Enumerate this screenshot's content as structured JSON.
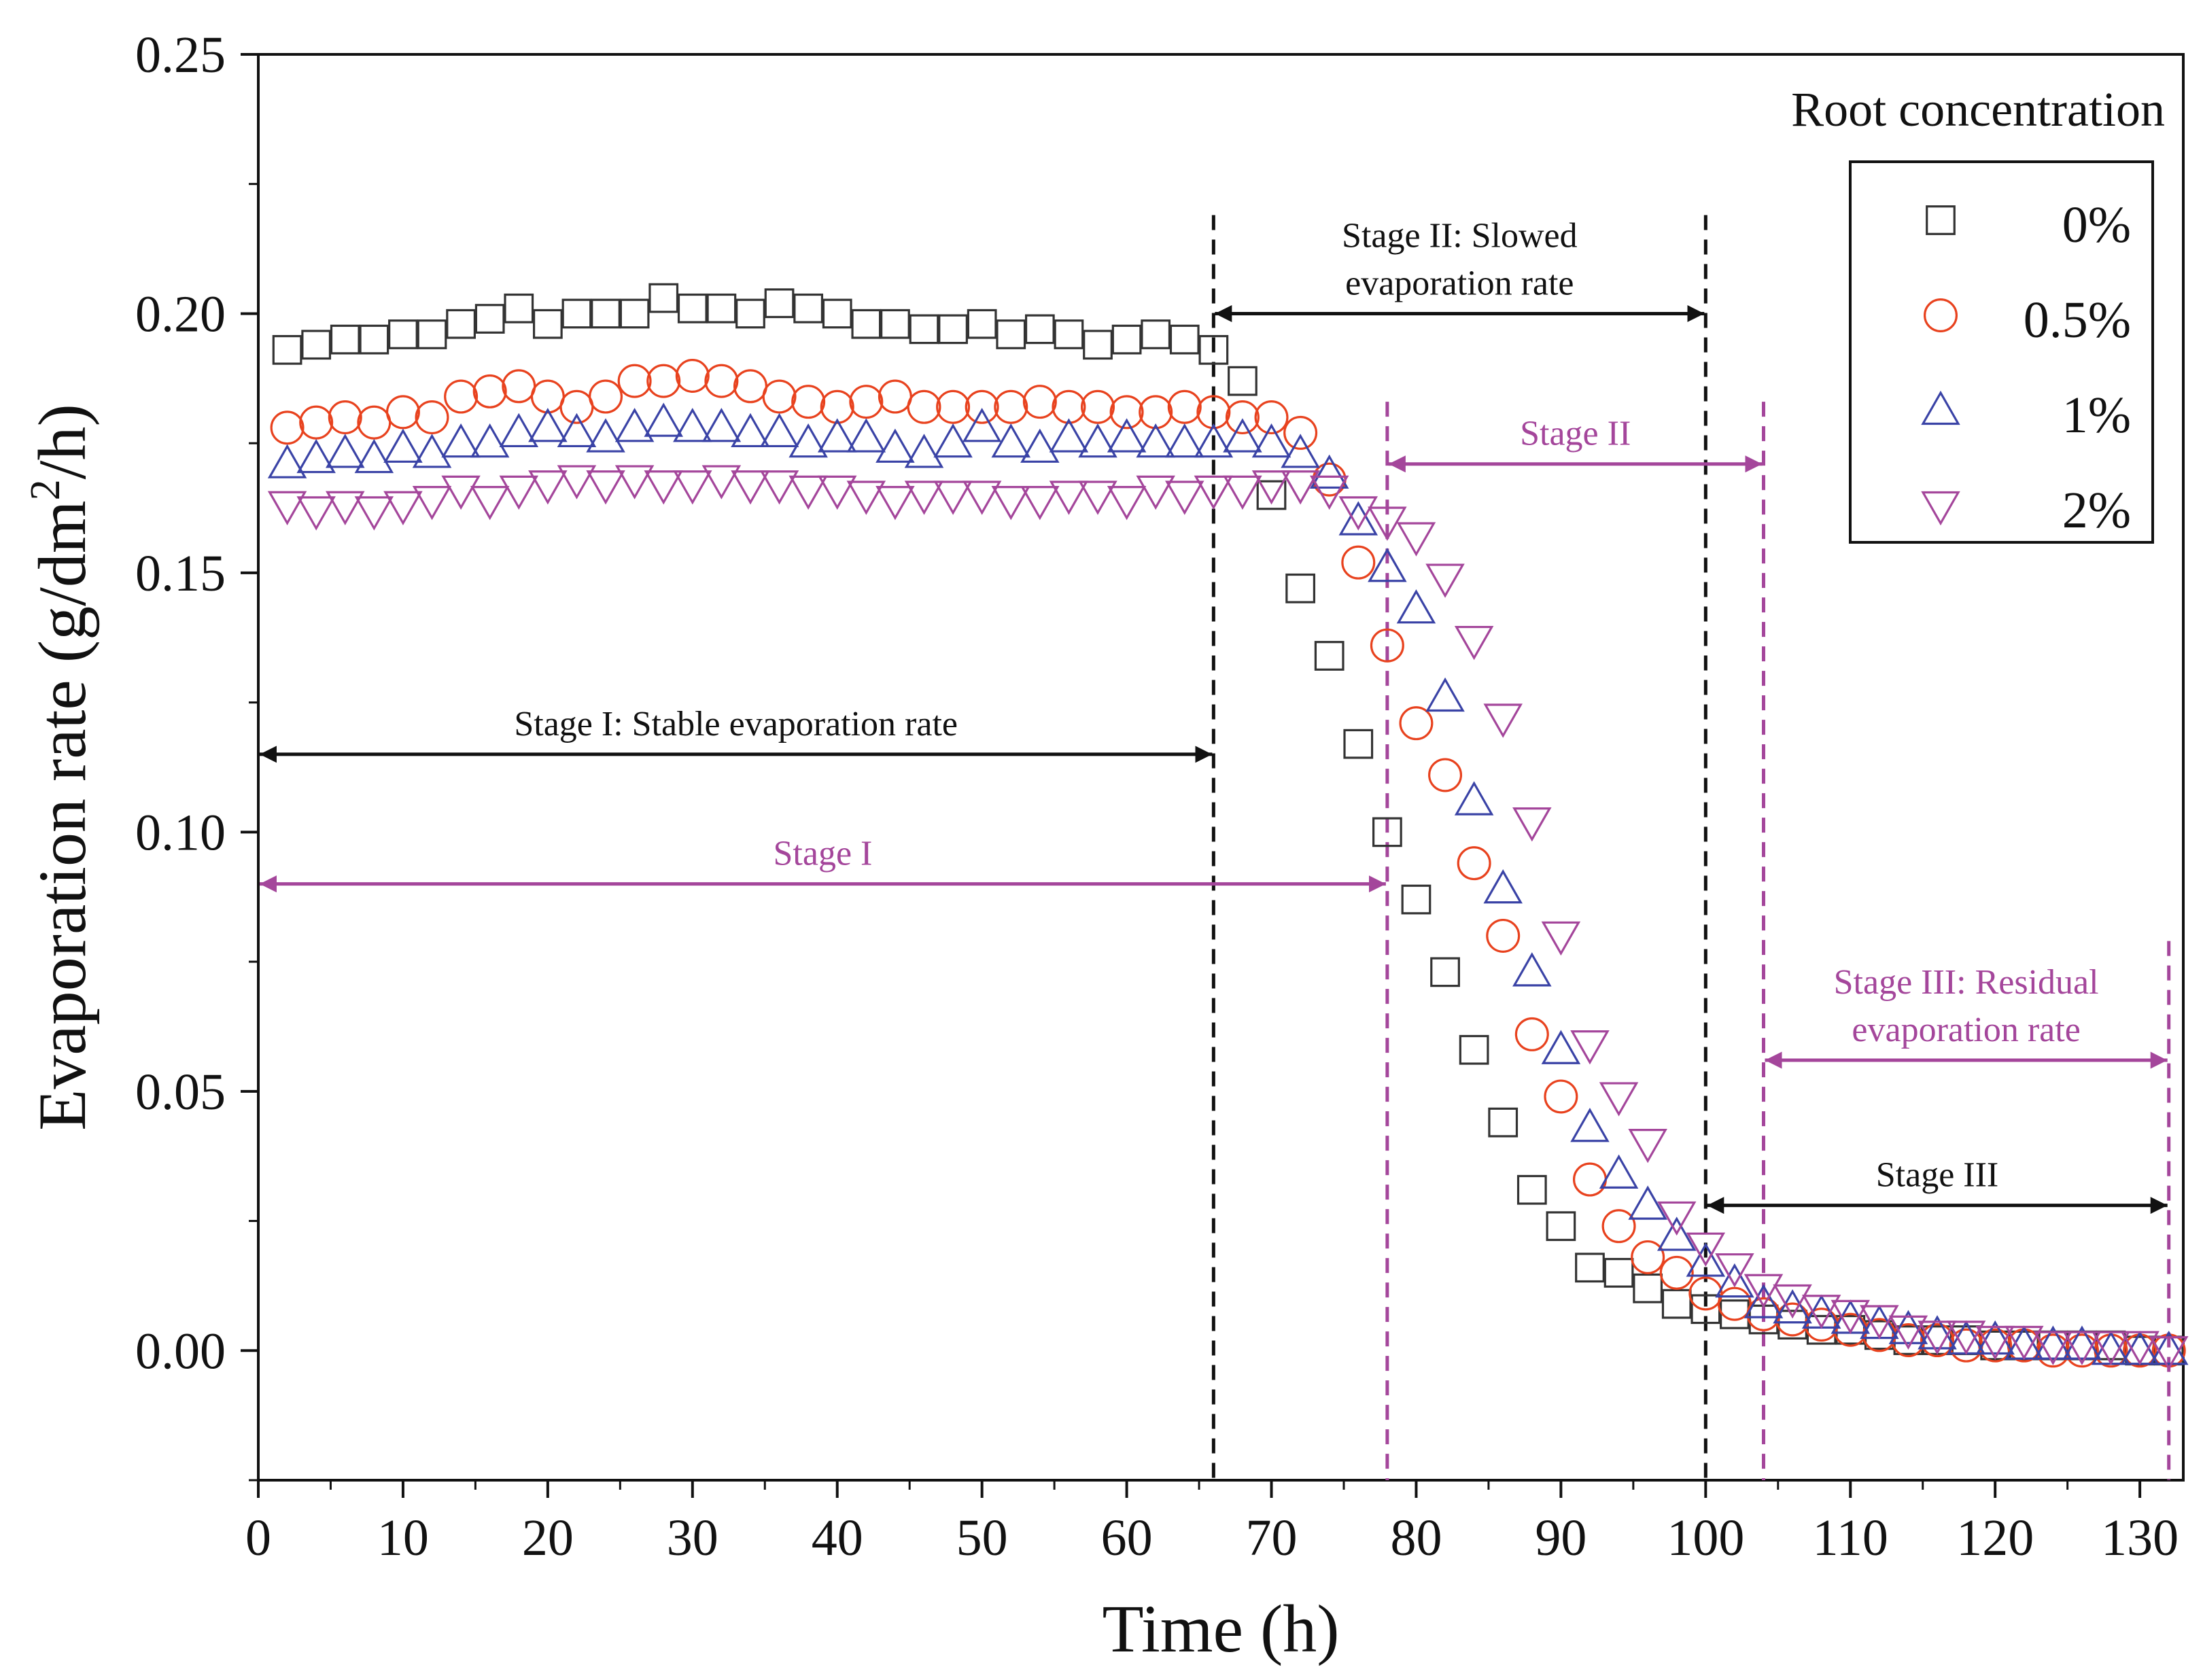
{
  "chart_data": {
    "type": "scatter",
    "title": "",
    "xlabel": "Time (h)",
    "ylabel": "Evaporation rate (g/dm²/h)",
    "ylabel_parts": [
      "Evaporation rate (g/dm",
      "2",
      "/h)"
    ],
    "xlim": [
      0,
      133
    ],
    "ylim": [
      -0.025,
      0.25
    ],
    "xticks": [
      0,
      10,
      20,
      30,
      40,
      50,
      60,
      70,
      80,
      90,
      100,
      110,
      120,
      130
    ],
    "yticks": [
      0.0,
      0.05,
      0.1,
      0.15,
      0.2,
      0.25
    ],
    "ytick_labels": [
      "0.00",
      "0.05",
      "0.10",
      "0.15",
      "0.20",
      "0.25"
    ],
    "legend": {
      "title": "Root concentration",
      "position": "top-right"
    },
    "series": [
      {
        "name": "0%",
        "marker": "square",
        "color": "#333333",
        "x": [
          2,
          4,
          6,
          8,
          10,
          12,
          14,
          16,
          18,
          20,
          22,
          24,
          26,
          28,
          30,
          32,
          34,
          36,
          38,
          40,
          42,
          44,
          46,
          48,
          50,
          52,
          54,
          56,
          58,
          60,
          62,
          64,
          66,
          68,
          70,
          72,
          74,
          76,
          78,
          80,
          82,
          84,
          86,
          88,
          90,
          92,
          94,
          96,
          98,
          100,
          102,
          104,
          106,
          108,
          110,
          112,
          114,
          116,
          118,
          120,
          122,
          124,
          126,
          128,
          130,
          132
        ],
        "y": [
          0.193,
          0.194,
          0.195,
          0.195,
          0.196,
          0.196,
          0.198,
          0.199,
          0.201,
          0.198,
          0.2,
          0.2,
          0.2,
          0.203,
          0.201,
          0.201,
          0.2,
          0.202,
          0.201,
          0.2,
          0.198,
          0.198,
          0.197,
          0.197,
          0.198,
          0.196,
          0.197,
          0.196,
          0.194,
          0.195,
          0.196,
          0.195,
          0.193,
          0.187,
          0.165,
          0.147,
          0.134,
          0.117,
          0.1,
          0.087,
          0.073,
          0.058,
          0.044,
          0.031,
          0.024,
          0.016,
          0.015,
          0.012,
          0.009,
          0.008,
          0.007,
          0.006,
          0.005,
          0.004,
          0.004,
          0.003,
          0.002,
          0.002,
          0.002,
          0.001,
          0.001,
          0.001,
          0.001,
          0.001,
          0.0,
          0.0
        ]
      },
      {
        "name": "0.5%",
        "marker": "circle",
        "color": "#e8421e",
        "x": [
          2,
          4,
          6,
          8,
          10,
          12,
          14,
          16,
          18,
          20,
          22,
          24,
          26,
          28,
          30,
          32,
          34,
          36,
          38,
          40,
          42,
          44,
          46,
          48,
          50,
          52,
          54,
          56,
          58,
          60,
          62,
          64,
          66,
          68,
          70,
          72,
          74,
          76,
          78,
          80,
          82,
          84,
          86,
          88,
          90,
          92,
          94,
          96,
          98,
          100,
          102,
          104,
          106,
          108,
          110,
          112,
          114,
          116,
          118,
          120,
          122,
          124,
          126,
          128,
          130,
          132
        ],
        "y": [
          0.178,
          0.179,
          0.18,
          0.179,
          0.181,
          0.18,
          0.184,
          0.185,
          0.186,
          0.184,
          0.182,
          0.184,
          0.187,
          0.187,
          0.188,
          0.187,
          0.186,
          0.184,
          0.183,
          0.182,
          0.183,
          0.184,
          0.182,
          0.182,
          0.182,
          0.182,
          0.183,
          0.182,
          0.182,
          0.181,
          0.181,
          0.182,
          0.181,
          0.18,
          0.18,
          0.177,
          0.168,
          0.152,
          0.136,
          0.121,
          0.111,
          0.094,
          0.08,
          0.061,
          0.049,
          0.033,
          0.024,
          0.018,
          0.015,
          0.011,
          0.009,
          0.007,
          0.006,
          0.005,
          0.004,
          0.003,
          0.002,
          0.002,
          0.001,
          0.001,
          0.001,
          0.0,
          0.0,
          0.0,
          0.0,
          0.0
        ]
      },
      {
        "name": "1%",
        "marker": "triangle-up",
        "color": "#3a43a6",
        "x": [
          2,
          4,
          6,
          8,
          10,
          12,
          14,
          16,
          18,
          20,
          22,
          24,
          26,
          28,
          30,
          32,
          34,
          36,
          38,
          40,
          42,
          44,
          46,
          48,
          50,
          52,
          54,
          56,
          58,
          60,
          62,
          64,
          66,
          68,
          70,
          72,
          74,
          76,
          78,
          80,
          82,
          84,
          86,
          88,
          90,
          92,
          94,
          96,
          98,
          100,
          102,
          104,
          106,
          108,
          110,
          112,
          114,
          116,
          118,
          120,
          122,
          124,
          126,
          128,
          130,
          132
        ],
        "y": [
          0.171,
          0.172,
          0.173,
          0.172,
          0.174,
          0.173,
          0.175,
          0.175,
          0.177,
          0.178,
          0.177,
          0.176,
          0.178,
          0.179,
          0.178,
          0.178,
          0.177,
          0.177,
          0.175,
          0.176,
          0.176,
          0.174,
          0.173,
          0.175,
          0.178,
          0.175,
          0.174,
          0.176,
          0.175,
          0.176,
          0.175,
          0.175,
          0.175,
          0.176,
          0.175,
          0.173,
          0.169,
          0.16,
          0.151,
          0.143,
          0.126,
          0.106,
          0.089,
          0.073,
          0.058,
          0.043,
          0.034,
          0.028,
          0.022,
          0.017,
          0.013,
          0.009,
          0.008,
          0.007,
          0.006,
          0.005,
          0.004,
          0.003,
          0.002,
          0.002,
          0.001,
          0.001,
          0.001,
          0.0,
          0.0,
          0.0
        ]
      },
      {
        "name": "2%",
        "marker": "triangle-down",
        "color": "#a4469b",
        "x": [
          2,
          4,
          6,
          8,
          10,
          12,
          14,
          16,
          18,
          20,
          22,
          24,
          26,
          28,
          30,
          32,
          34,
          36,
          38,
          40,
          42,
          44,
          46,
          48,
          50,
          52,
          54,
          56,
          58,
          60,
          62,
          64,
          66,
          68,
          70,
          72,
          74,
          76,
          78,
          80,
          82,
          84,
          86,
          88,
          90,
          92,
          94,
          96,
          98,
          100,
          102,
          104,
          106,
          108,
          110,
          112,
          114,
          116,
          118,
          120,
          122,
          124,
          126,
          128,
          130,
          132
        ],
        "y": [
          0.163,
          0.162,
          0.163,
          0.162,
          0.163,
          0.164,
          0.166,
          0.164,
          0.166,
          0.167,
          0.168,
          0.167,
          0.168,
          0.167,
          0.167,
          0.168,
          0.167,
          0.167,
          0.166,
          0.166,
          0.165,
          0.164,
          0.165,
          0.165,
          0.165,
          0.164,
          0.164,
          0.165,
          0.165,
          0.164,
          0.166,
          0.165,
          0.166,
          0.166,
          0.167,
          0.167,
          0.166,
          0.162,
          0.16,
          0.157,
          0.149,
          0.137,
          0.122,
          0.102,
          0.08,
          0.059,
          0.049,
          0.04,
          0.026,
          0.02,
          0.016,
          0.012,
          0.01,
          0.008,
          0.007,
          0.006,
          0.004,
          0.003,
          0.003,
          0.002,
          0.002,
          0.001,
          0.001,
          0.001,
          0.001,
          0.0
        ]
      }
    ],
    "vlines": [
      {
        "x": 66,
        "color": "#111111",
        "y_top": 0.219
      },
      {
        "x": 100,
        "color": "#111111",
        "y_top": 0.219
      },
      {
        "x": 78,
        "color": "#a4469b",
        "y_top": 0.183
      },
      {
        "x": 104,
        "color": "#a4469b",
        "y_top": 0.183
      },
      {
        "x": 132,
        "color": "#a4469b",
        "y_top": 0.079
      }
    ],
    "annotations": [
      {
        "id": "stage1-black",
        "text": "Stage I: Stable evaporation rate",
        "x1": 0,
        "x2": 66,
        "y": 0.115,
        "color": "#111111",
        "lines": [
          "Stage I: Stable evaporation rate"
        ]
      },
      {
        "id": "stage1-magenta",
        "text": "Stage I",
        "x1": 0,
        "x2": 78,
        "y": 0.09,
        "color": "#a4469b",
        "lines": [
          "Stage I"
        ]
      },
      {
        "id": "stage2-black",
        "text": "Stage II: Slowed evaporation rate",
        "x1": 66,
        "x2": 100,
        "y": 0.2,
        "color": "#111111",
        "lines": [
          "Stage II: Slowed",
          "evaporation rate"
        ]
      },
      {
        "id": "stage2-magenta",
        "text": "Stage II",
        "x1": 78,
        "x2": 104,
        "y": 0.171,
        "color": "#a4469b",
        "lines": [
          "Stage II"
        ]
      },
      {
        "id": "stage3-magenta",
        "text": "Stage III: Residual evaporation rate",
        "x1": 104,
        "x2": 132,
        "y": 0.056,
        "color": "#a4469b",
        "lines": [
          "Stage III: Residual",
          "evaporation rate"
        ]
      },
      {
        "id": "stage3-black",
        "text": "Stage III",
        "x1": 100,
        "x2": 132,
        "y": 0.028,
        "color": "#111111",
        "lines": [
          "Stage III"
        ]
      }
    ]
  }
}
